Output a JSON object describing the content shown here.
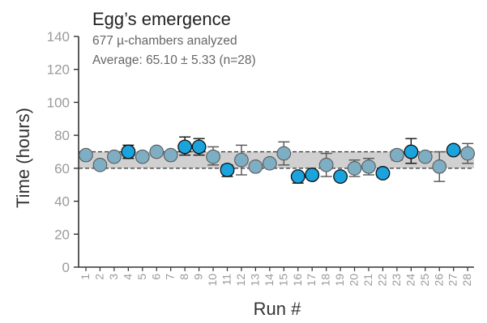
{
  "chart_data": {
    "type": "scatter",
    "title": "Egg’s emergence",
    "subtitle_lines": [
      "677 µ-chambers analyzed",
      "Average: 65.10 ± 5.33 (n=28)"
    ],
    "xlabel": "Run #",
    "ylabel": "Time (hours)",
    "ylim": [
      0,
      140
    ],
    "yticks": [
      0,
      20,
      40,
      60,
      80,
      100,
      120,
      140
    ],
    "band": {
      "lower": 60,
      "upper": 70
    },
    "grid": false,
    "legend": "none",
    "colors": {
      "highlight": "#1aa3dc",
      "normal": "#7eaec4",
      "band": "#d0d0d0",
      "axis": "#333333"
    },
    "points": [
      {
        "run": "1",
        "mean": 68,
        "err_low": 68,
        "err_high": 68,
        "highlight": false
      },
      {
        "run": "2",
        "mean": 62,
        "err_low": 62,
        "err_high": 62,
        "highlight": false
      },
      {
        "run": "3",
        "mean": 67,
        "err_low": 67,
        "err_high": 67,
        "highlight": false
      },
      {
        "run": "4",
        "mean": 70,
        "err_low": 66,
        "err_high": 74,
        "highlight": true
      },
      {
        "run": "5",
        "mean": 67,
        "err_low": 67,
        "err_high": 67,
        "highlight": false
      },
      {
        "run": "6",
        "mean": 70,
        "err_low": 68,
        "err_high": 72,
        "highlight": false
      },
      {
        "run": "7",
        "mean": 68,
        "err_low": 68,
        "err_high": 68,
        "highlight": false
      },
      {
        "run": "8",
        "mean": 73,
        "err_low": 68,
        "err_high": 79,
        "highlight": true
      },
      {
        "run": "9",
        "mean": 73,
        "err_low": 68,
        "err_high": 78,
        "highlight": true
      },
      {
        "run": "10",
        "mean": 67,
        "err_low": 62,
        "err_high": 73,
        "highlight": false
      },
      {
        "run": "11",
        "mean": 59,
        "err_low": 55,
        "err_high": 62,
        "highlight": true
      },
      {
        "run": "12",
        "mean": 65,
        "err_low": 56,
        "err_high": 74,
        "highlight": false
      },
      {
        "run": "13",
        "mean": 61,
        "err_low": 61,
        "err_high": 61,
        "highlight": false
      },
      {
        "run": "14",
        "mean": 63,
        "err_low": 63,
        "err_high": 63,
        "highlight": false
      },
      {
        "run": "15",
        "mean": 69,
        "err_low": 62,
        "err_high": 76,
        "highlight": false
      },
      {
        "run": "16",
        "mean": 55,
        "err_low": 51,
        "err_high": 57,
        "highlight": true
      },
      {
        "run": "17",
        "mean": 56,
        "err_low": 56,
        "err_high": 56,
        "highlight": true
      },
      {
        "run": "18",
        "mean": 62,
        "err_low": 55,
        "err_high": 69,
        "highlight": false
      },
      {
        "run": "19",
        "mean": 55,
        "err_low": 55,
        "err_high": 55,
        "highlight": true
      },
      {
        "run": "20",
        "mean": 60,
        "err_low": 55,
        "err_high": 65,
        "highlight": false
      },
      {
        "run": "21",
        "mean": 61,
        "err_low": 56,
        "err_high": 66,
        "highlight": false
      },
      {
        "run": "22",
        "mean": 57,
        "err_low": 57,
        "err_high": 57,
        "highlight": true
      },
      {
        "run": "23",
        "mean": 68,
        "err_low": 65,
        "err_high": 71,
        "highlight": false
      },
      {
        "run": "24",
        "mean": 70,
        "err_low": 63,
        "err_high": 78,
        "highlight": true
      },
      {
        "run": "25",
        "mean": 67,
        "err_low": 67,
        "err_high": 67,
        "highlight": false
      },
      {
        "run": "26",
        "mean": 61,
        "err_low": 52,
        "err_high": 70,
        "highlight": false
      },
      {
        "run": "27",
        "mean": 71,
        "err_low": 71,
        "err_high": 71,
        "highlight": true
      },
      {
        "run": "28",
        "mean": 69,
        "err_low": 63,
        "err_high": 75,
        "highlight": false
      }
    ]
  }
}
